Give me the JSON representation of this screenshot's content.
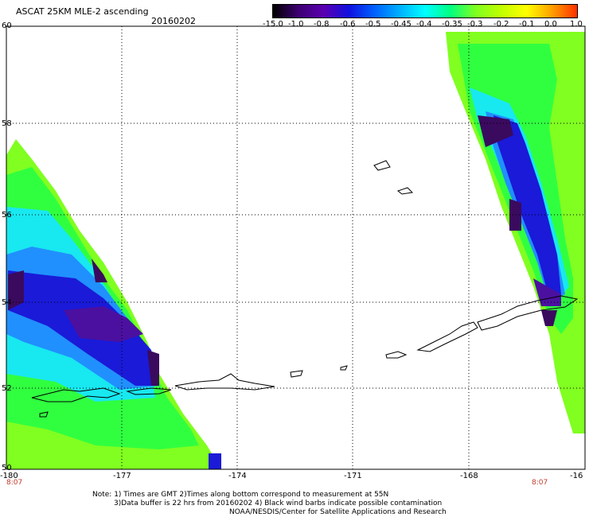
{
  "header": {
    "title": "ASCAT 25KM MLE-2 ascending",
    "date": "20160202"
  },
  "colorbar": {
    "labels": [
      "-15.0",
      "-1.0",
      "-0.8",
      "-0.6",
      "-0.5",
      "-0.45",
      "-0.4",
      "-0.35",
      "-0.3",
      "-0.2",
      "-0.1",
      "0.0",
      "1.0"
    ],
    "colors": [
      "#000000",
      "#3c0070",
      "#5a00b0",
      "#1010e0",
      "#0060ff",
      "#00b0ff",
      "#00ffff",
      "#00ff80",
      "#80ff20",
      "#c0ff00",
      "#ffff00",
      "#ffa000",
      "#ff3000"
    ]
  },
  "axes": {
    "lat_labels": [
      "60",
      "58",
      "56",
      "54",
      "52",
      "50"
    ],
    "lon_labels": [
      "-180",
      "-177",
      "-174",
      "-171",
      "-168",
      "-16"
    ],
    "time_left": "8:07",
    "time_right": "8:07"
  },
  "notes": {
    "line1": "Note: 1) Times are GMT 2)Times along bottom correspond to measurement at 55N",
    "line2": "3)Data buffer is 22 hrs from 20160202 4) Black wind barbs indicate possible contamination",
    "line3": "NOAA/NESDIS/Center for Satellite Applications and Research"
  },
  "palette": {
    "dark_purple": "#3a0a5e",
    "purple": "#4b10a0",
    "blue": "#1a1ad8",
    "light_blue": "#2090ff",
    "cyan": "#18e8f0",
    "mint": "#00ff90",
    "green": "#30ff40",
    "yellow_green": "#80ff20"
  }
}
